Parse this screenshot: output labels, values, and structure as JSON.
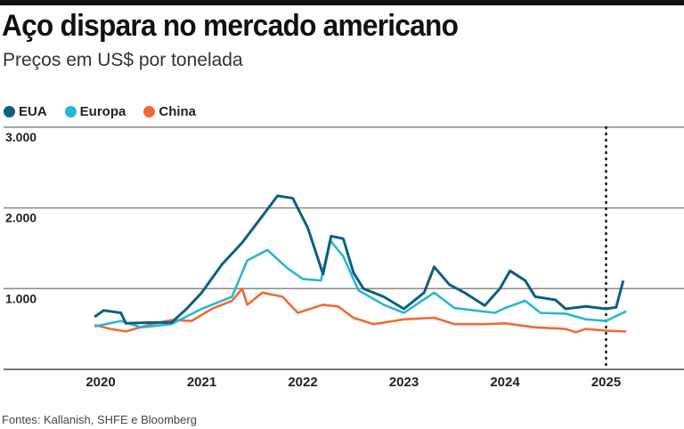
{
  "title": "Aço dispara no mercado americano",
  "subtitle": "Preços em US$ por tonelada",
  "source": "Fontes: Kallanish, SHFE e Bloomberg",
  "chart_data": {
    "type": "line",
    "title": "Aço dispara no mercado americano",
    "ylabel": "US$ por tonelada",
    "ylim": [
      0,
      3000
    ],
    "xlim": [
      2019.9,
      2025.75
    ],
    "yticks": [
      {
        "value": 1000,
        "label": "1.000"
      },
      {
        "value": 2000,
        "label": "2.000"
      },
      {
        "value": 3000,
        "label": "3.000"
      }
    ],
    "xticks": [
      {
        "value": 2020,
        "label": "2020"
      },
      {
        "value": 2021,
        "label": "2021"
      },
      {
        "value": 2022,
        "label": "2022"
      },
      {
        "value": 2023,
        "label": "2023"
      },
      {
        "value": 2024,
        "label": "2024"
      },
      {
        "value": 2025,
        "label": "2025"
      }
    ],
    "grid": true,
    "legend_position": "top-left",
    "annotation_vline": 2025,
    "series": [
      {
        "name": "EUA",
        "color": "#0d6080",
        "x": [
          2019.94,
          2020.03,
          2020.2,
          2020.25,
          2020.5,
          2020.7,
          2020.85,
          2021.0,
          2021.2,
          2021.4,
          2021.6,
          2021.75,
          2021.9,
          2022.05,
          2022.2,
          2022.28,
          2022.4,
          2022.5,
          2022.6,
          2022.8,
          2023.0,
          2023.2,
          2023.3,
          2023.45,
          2023.6,
          2023.8,
          2023.95,
          2024.05,
          2024.2,
          2024.3,
          2024.5,
          2024.6,
          2024.8,
          2025.0,
          2025.1,
          2025.17
        ],
        "y": [
          650,
          730,
          700,
          570,
          580,
          580,
          750,
          950,
          1300,
          1570,
          1900,
          2150,
          2120,
          1750,
          1180,
          1650,
          1620,
          1200,
          1000,
          900,
          750,
          950,
          1270,
          1050,
          950,
          790,
          1000,
          1220,
          1100,
          900,
          860,
          750,
          780,
          750,
          770,
          1100
        ]
      },
      {
        "name": "Europa",
        "color": "#2bb5d6",
        "x": [
          2019.94,
          2020.2,
          2020.4,
          2020.7,
          2021.0,
          2021.3,
          2021.45,
          2021.65,
          2021.85,
          2022.0,
          2022.18,
          2022.27,
          2022.4,
          2022.55,
          2022.8,
          2023.0,
          2023.3,
          2023.5,
          2023.9,
          2024.0,
          2024.2,
          2024.35,
          2024.6,
          2024.8,
          2025.0,
          2025.2
        ],
        "y": [
          530,
          600,
          520,
          560,
          750,
          900,
          1350,
          1480,
          1250,
          1120,
          1100,
          1600,
          1400,
          980,
          800,
          700,
          950,
          760,
          700,
          760,
          850,
          700,
          690,
          620,
          600,
          720
        ]
      },
      {
        "name": "China",
        "color": "#f06a36",
        "x": [
          2019.94,
          2020.1,
          2020.25,
          2020.5,
          2020.7,
          2020.9,
          2021.1,
          2021.3,
          2021.4,
          2021.45,
          2021.6,
          2021.8,
          2021.95,
          2022.2,
          2022.35,
          2022.5,
          2022.7,
          2022.9,
          2023.0,
          2023.3,
          2023.5,
          2023.8,
          2024.0,
          2024.3,
          2024.6,
          2024.7,
          2024.8,
          2025.0,
          2025.2
        ],
        "y": [
          550,
          500,
          470,
          560,
          610,
          600,
          750,
          850,
          1000,
          800,
          950,
          900,
          700,
          800,
          780,
          640,
          560,
          600,
          620,
          640,
          560,
          560,
          570,
          520,
          500,
          460,
          500,
          480,
          470
        ]
      }
    ]
  }
}
